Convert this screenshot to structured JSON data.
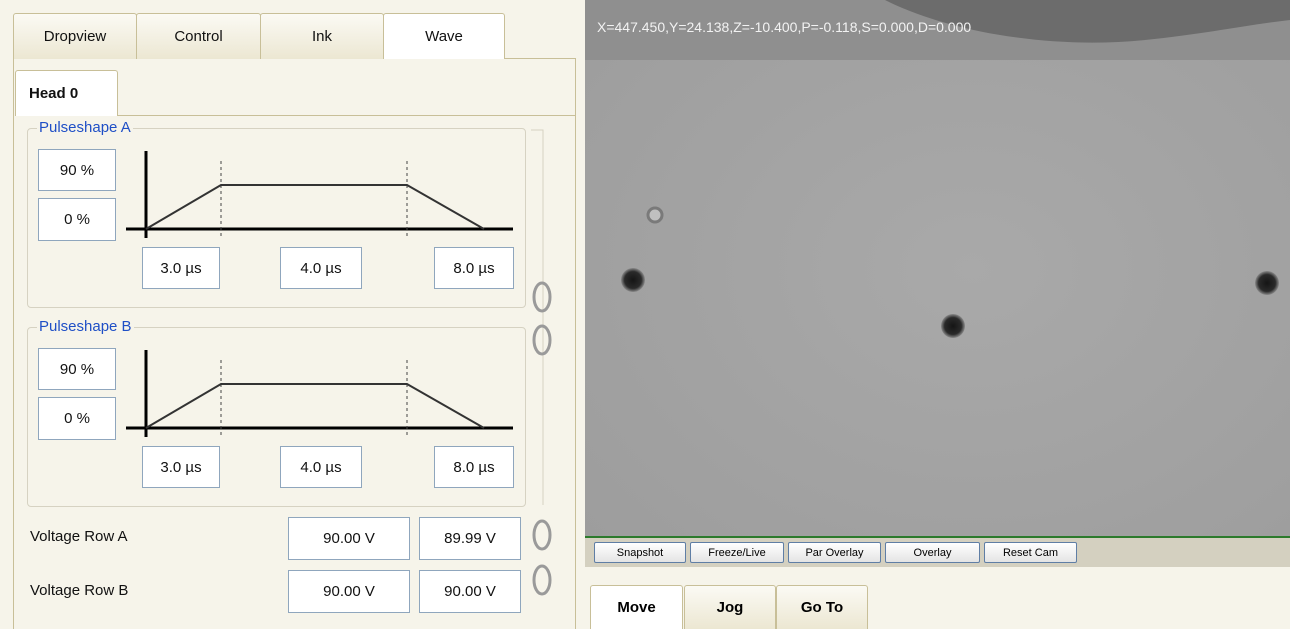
{
  "tabs": [
    "Dropview",
    "Control",
    "Ink",
    "Wave"
  ],
  "head_tab": "Head 0",
  "pulseshapes": [
    {
      "title": "Pulseshape A",
      "amplitude_high": "90 %",
      "amplitude_low": "0 %",
      "times": [
        "3.0 µs",
        "4.0 µs",
        "8.0 µs"
      ]
    },
    {
      "title": "Pulseshape B",
      "amplitude_high": "90 %",
      "amplitude_low": "0 %",
      "times": [
        "3.0 µs",
        "4.0 µs",
        "8.0 µs"
      ]
    }
  ],
  "voltage_rows": [
    {
      "label": "Voltage Row A",
      "set": "90.00 V",
      "actual": "89.99 V"
    },
    {
      "label": "Voltage Row B",
      "set": "90.00 V",
      "actual": "90.00 V"
    }
  ],
  "camera": {
    "status": "X=447.450,Y=24.138,Z=-10.400,P=-0.118,S=0.000,D=0.000",
    "buttons": [
      "Snapshot",
      "Freeze/Live",
      "Par Overlay",
      "Overlay",
      "Reset Cam"
    ]
  },
  "bottom_tabs": [
    "Move",
    "Jog",
    "Go To"
  ]
}
